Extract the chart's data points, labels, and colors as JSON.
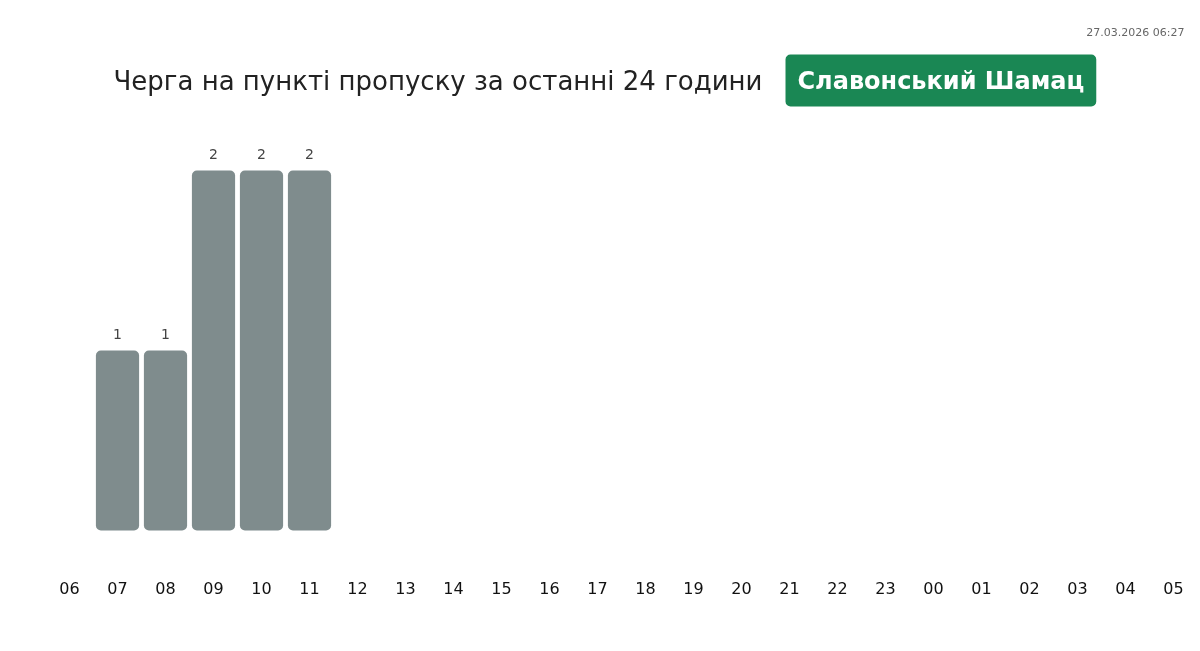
{
  "chart_data": {
    "type": "bar",
    "title": "Черга на пункті пропуску за останні 24 години",
    "subtitle": "Славонський Шамац",
    "annotations": [
      "27.03.2026 06:27"
    ],
    "categories": [
      "06",
      "07",
      "08",
      "09",
      "10",
      "11",
      "12",
      "13",
      "14",
      "15",
      "16",
      "17",
      "18",
      "19",
      "20",
      "21",
      "22",
      "23",
      "00",
      "01",
      "02",
      "03",
      "04",
      "05"
    ],
    "values": [
      null,
      1,
      1,
      2,
      2,
      2,
      null,
      null,
      null,
      null,
      null,
      null,
      null,
      null,
      null,
      null,
      null,
      null,
      null,
      null,
      null,
      null,
      null,
      null
    ],
    "color": "#7f8c8d",
    "data_labels": true,
    "tick_labels": "x",
    "grid": false
  }
}
